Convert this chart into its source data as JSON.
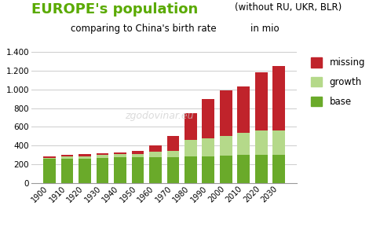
{
  "years": [
    "1900",
    "1910",
    "1920",
    "1930",
    "1940",
    "1950",
    "1960",
    "1970",
    "1980",
    "1990",
    "2000",
    "2010",
    "2020",
    "2030"
  ],
  "base": [
    260,
    265,
    265,
    270,
    275,
    275,
    275,
    280,
    285,
    290,
    295,
    300,
    305,
    305
  ],
  "growth": [
    10,
    20,
    25,
    30,
    35,
    40,
    60,
    65,
    175,
    190,
    205,
    240,
    255,
    260
  ],
  "missing": [
    20,
    15,
    25,
    20,
    20,
    30,
    65,
    160,
    290,
    420,
    490,
    490,
    620,
    680
  ],
  "base_color": "#6aaa2a",
  "growth_color": "#b5d98a",
  "missing_color": "#c0232b",
  "title_main": "EUROPE's population",
  "title_sub1": "(without RU, UKR, BLR)",
  "title_sub2": "comparing to China's birth rate",
  "title_sub3": "in mio",
  "title_color": "#5aaa00",
  "yticks": [
    0,
    200,
    400,
    600,
    800,
    1000,
    1200,
    1400
  ],
  "ytick_labels": [
    "0",
    "200",
    "400",
    "600",
    "800",
    "1.000",
    "1.200",
    "1.400"
  ],
  "ylim": [
    0,
    1500
  ],
  "bg_color": "#ffffff",
  "watermark": "zgodovinar.eu"
}
